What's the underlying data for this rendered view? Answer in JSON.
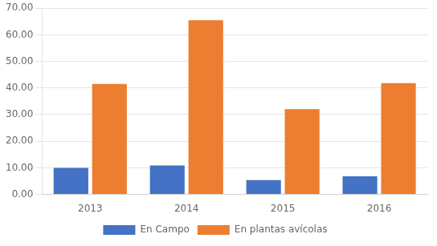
{
  "chart_data": {
    "type": "bar",
    "categories": [
      "2013",
      "2014",
      "2015",
      "2016"
    ],
    "series": [
      {
        "name": "En Campo",
        "color": "#4472C4",
        "values": [
          10.0,
          10.9,
          5.4,
          6.8
        ]
      },
      {
        "name": "En plantas avícolas",
        "color": "#ED7D31",
        "values": [
          41.5,
          65.5,
          32.0,
          41.8
        ]
      }
    ],
    "ylim": [
      0,
      70
    ],
    "yticks": [
      {
        "value": 0,
        "label": "0.00"
      },
      {
        "value": 10,
        "label": "10.00"
      },
      {
        "value": 20,
        "label": "20.00"
      },
      {
        "value": 30,
        "label": "30.00"
      },
      {
        "value": 40,
        "label": "40.00"
      },
      {
        "value": 50,
        "label": "50.00"
      },
      {
        "value": 60,
        "label": "60.00"
      },
      {
        "value": 70,
        "label": "70.00"
      }
    ],
    "grid": true,
    "legend": "bottom"
  }
}
